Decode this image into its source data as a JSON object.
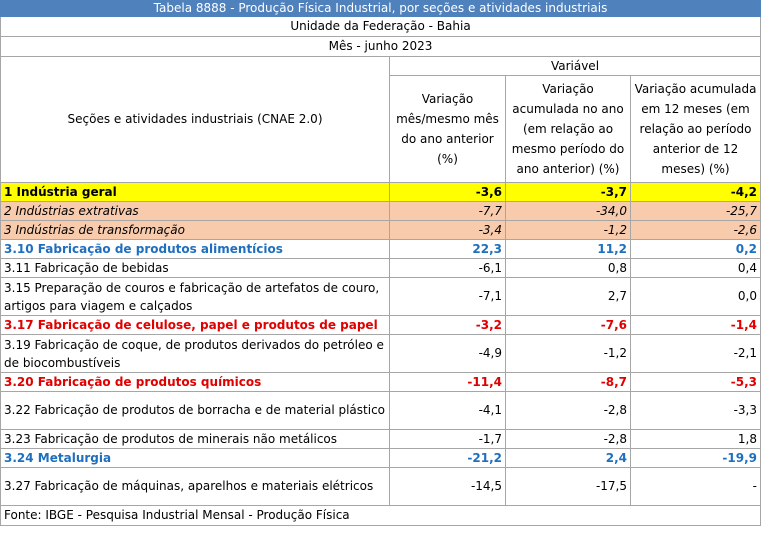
{
  "table": {
    "title": "Tabela 8888 - Produção Física Industrial, por seções e atividades industriais",
    "territory": "Unidade da Federação - Bahia",
    "period": "Mês - junho 2023",
    "variable_header": "Variável",
    "row_header": "Seções e atividades industriais (CNAE 2.0)",
    "columns": [
      "Variação mês/mesmo mês do ano anterior (%)",
      "Variação acumulada no ano (em relação ao mesmo período do ano anterior) (%)",
      "Variação acumulada em 12 meses (em relação ao período anterior de 12 meses) (%)"
    ],
    "rows": [
      {
        "label": "1 Indústria geral",
        "values": [
          "-3,6",
          "-3,7",
          "-4,2"
        ]
      },
      {
        "label": "2 Indústrias extrativas",
        "values": [
          "-7,7",
          "-34,0",
          "-25,7"
        ]
      },
      {
        "label": "3 Indústrias de transformação",
        "values": [
          "-3,4",
          "-1,2",
          "-2,6"
        ]
      },
      {
        "label": "3.10 Fabricação de produtos alimentícios",
        "values": [
          "22,3",
          "11,2",
          "0,2"
        ]
      },
      {
        "label": "3.11 Fabricação de bebidas",
        "values": [
          "-6,1",
          "0,8",
          "0,4"
        ]
      },
      {
        "label": "3.15 Preparação de couros e fabricação de artefatos de couro, artigos para viagem e calçados",
        "values": [
          "-7,1",
          "2,7",
          "0,0"
        ]
      },
      {
        "label": "3.17 Fabricação de celulose, papel e produtos de papel",
        "values": [
          "-3,2",
          "-7,6",
          "-1,4"
        ]
      },
      {
        "label": "3.19 Fabricação de coque, de produtos derivados do petróleo e de biocombustíveis",
        "values": [
          "-4,9",
          "-1,2",
          "-2,1"
        ]
      },
      {
        "label": "3.20 Fabricação de produtos químicos",
        "values": [
          "-11,4",
          "-8,7",
          "-5,3"
        ]
      },
      {
        "label": "3.22 Fabricação de produtos de borracha e de material plástico",
        "values": [
          "-4,1",
          "-2,8",
          "-3,3"
        ]
      },
      {
        "label": "3.23 Fabricação de produtos de minerais não metálicos",
        "values": [
          "-1,7",
          "-2,8",
          "1,8"
        ]
      },
      {
        "label": "3.24 Metalurgia",
        "values": [
          "-21,2",
          "2,4",
          "-19,9"
        ]
      },
      {
        "label": "3.27 Fabricação de máquinas, aparelhos e materiais elétricos",
        "values": [
          "-14,5",
          "-17,5",
          "-"
        ]
      }
    ],
    "footer": "Fonte: IBGE - Pesquisa Industrial Mensal - Produção Física"
  },
  "colors": {
    "title_bg": "#4f81bd",
    "total_row_bg": "#ffff00",
    "section_row_bg": "#f8cbad",
    "highlight_blue": "#1f6fbf",
    "highlight_red": "#e00000"
  }
}
